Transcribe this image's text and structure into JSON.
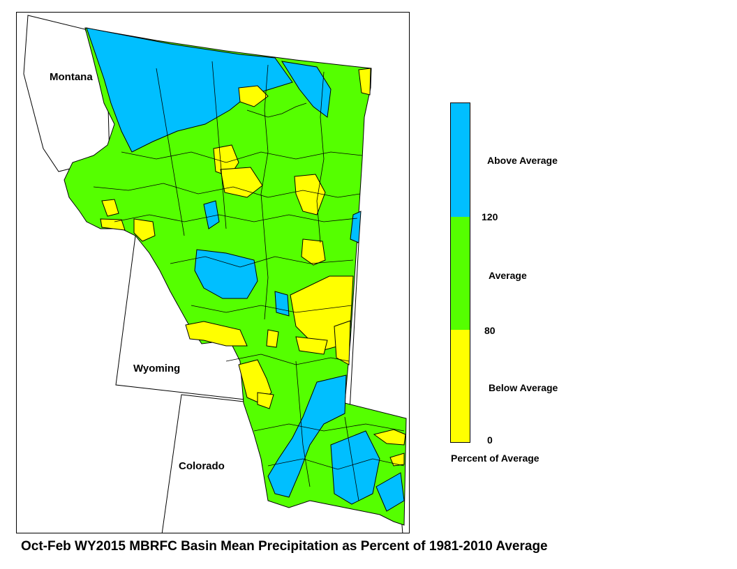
{
  "title": "Oct-Feb WY2015 MBRFC Basin Mean Precipitation as Percent of 1981-2010 Average",
  "state_labels": {
    "montana": "Montana",
    "wyoming": "Wyoming",
    "colorado": "Colorado"
  },
  "legend": {
    "title": "Percent of Average",
    "categories": [
      {
        "label": "Above Average",
        "color": "#00BFFF",
        "range": [
          120,
          null
        ]
      },
      {
        "label": "Average",
        "color": "#55FF00",
        "range": [
          80,
          120
        ]
      },
      {
        "label": "Below Average",
        "color": "#FFFF00",
        "range": [
          0,
          80
        ]
      }
    ],
    "ticks": {
      "upper": "120",
      "middle": "80",
      "lower": "0"
    }
  },
  "colors": {
    "above": "#00BFFF",
    "average": "#55FF00",
    "below": "#FFFF00",
    "border": "#000000"
  }
}
